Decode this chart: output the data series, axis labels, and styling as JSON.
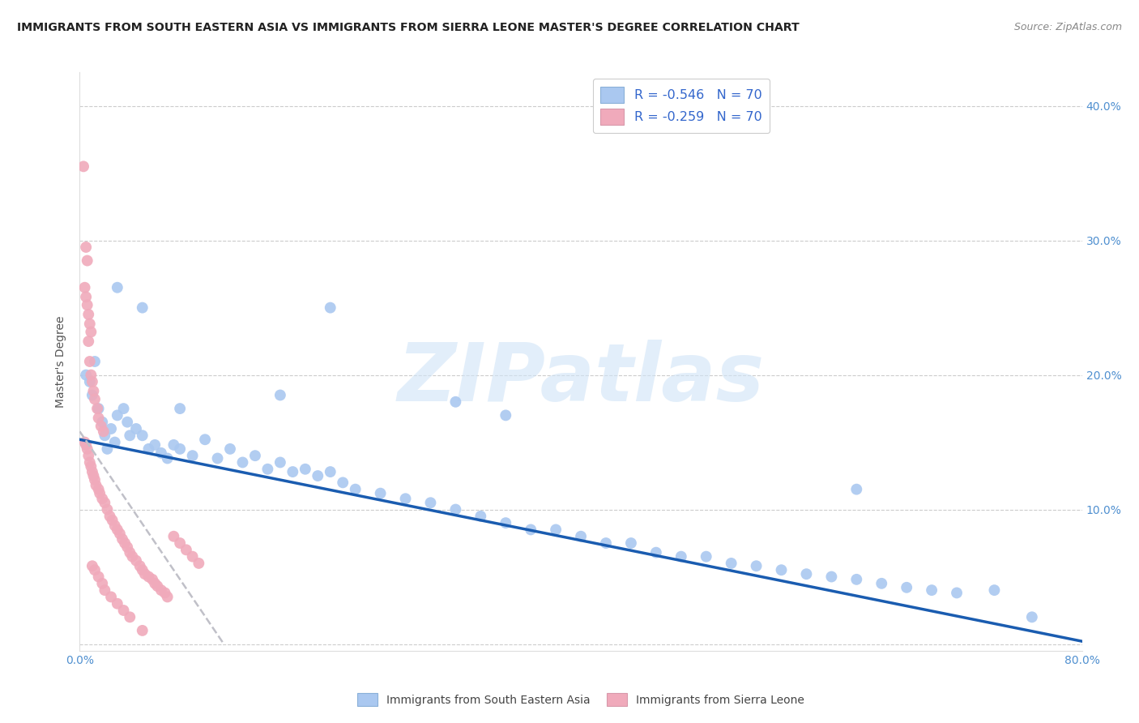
{
  "title": "IMMIGRANTS FROM SOUTH EASTERN ASIA VS IMMIGRANTS FROM SIERRA LEONE MASTER'S DEGREE CORRELATION CHART",
  "source": "Source: ZipAtlas.com",
  "ylabel": "Master's Degree",
  "xlim": [
    0.0,
    0.8
  ],
  "ylim": [
    -0.005,
    0.425
  ],
  "yticks": [
    0.0,
    0.1,
    0.2,
    0.3,
    0.4
  ],
  "ytick_labels_right": [
    "",
    "10.0%",
    "20.0%",
    "30.0%",
    "40.0%"
  ],
  "xticks": [
    0.0,
    0.8
  ],
  "xtick_labels": [
    "0.0%",
    "80.0%"
  ],
  "legend_r1": "-0.546",
  "legend_n1": "70",
  "legend_r2": "-0.259",
  "legend_n2": "70",
  "legend_label1": "Immigrants from South Eastern Asia",
  "legend_label2": "Immigrants from Sierra Leone",
  "color_blue": "#aac8f0",
  "color_pink": "#f0aabb",
  "color_blue_line": "#1a5cb0",
  "watermark_text": "ZIPatlas",
  "blue_line_x": [
    0.0,
    0.8
  ],
  "blue_line_y": [
    0.152,
    0.002
  ],
  "pink_line_x": [
    0.0,
    0.115
  ],
  "pink_line_y": [
    0.158,
    0.0
  ],
  "blue_scatter_x": [
    0.005,
    0.008,
    0.01,
    0.012,
    0.015,
    0.018,
    0.02,
    0.022,
    0.025,
    0.028,
    0.03,
    0.035,
    0.038,
    0.04,
    0.045,
    0.05,
    0.055,
    0.06,
    0.065,
    0.07,
    0.075,
    0.08,
    0.09,
    0.1,
    0.11,
    0.12,
    0.13,
    0.14,
    0.15,
    0.16,
    0.17,
    0.18,
    0.19,
    0.2,
    0.21,
    0.22,
    0.24,
    0.26,
    0.28,
    0.3,
    0.32,
    0.34,
    0.36,
    0.38,
    0.4,
    0.42,
    0.44,
    0.46,
    0.48,
    0.5,
    0.52,
    0.54,
    0.56,
    0.58,
    0.6,
    0.62,
    0.64,
    0.66,
    0.68,
    0.7,
    0.03,
    0.05,
    0.2,
    0.3,
    0.08,
    0.16,
    0.73,
    0.76,
    0.62,
    0.34
  ],
  "blue_scatter_y": [
    0.2,
    0.195,
    0.185,
    0.21,
    0.175,
    0.165,
    0.155,
    0.145,
    0.16,
    0.15,
    0.17,
    0.175,
    0.165,
    0.155,
    0.16,
    0.155,
    0.145,
    0.148,
    0.142,
    0.138,
    0.148,
    0.145,
    0.14,
    0.152,
    0.138,
    0.145,
    0.135,
    0.14,
    0.13,
    0.135,
    0.128,
    0.13,
    0.125,
    0.128,
    0.12,
    0.115,
    0.112,
    0.108,
    0.105,
    0.1,
    0.095,
    0.09,
    0.085,
    0.085,
    0.08,
    0.075,
    0.075,
    0.068,
    0.065,
    0.065,
    0.06,
    0.058,
    0.055,
    0.052,
    0.05,
    0.048,
    0.045,
    0.042,
    0.04,
    0.038,
    0.265,
    0.25,
    0.25,
    0.18,
    0.175,
    0.185,
    0.04,
    0.02,
    0.115,
    0.17
  ],
  "pink_scatter_x": [
    0.003,
    0.004,
    0.005,
    0.005,
    0.006,
    0.006,
    0.007,
    0.007,
    0.008,
    0.008,
    0.009,
    0.009,
    0.01,
    0.01,
    0.011,
    0.011,
    0.012,
    0.012,
    0.013,
    0.014,
    0.015,
    0.015,
    0.016,
    0.017,
    0.018,
    0.019,
    0.02,
    0.022,
    0.024,
    0.026,
    0.028,
    0.03,
    0.032,
    0.034,
    0.036,
    0.038,
    0.04,
    0.042,
    0.045,
    0.048,
    0.05,
    0.052,
    0.055,
    0.058,
    0.06,
    0.062,
    0.065,
    0.068,
    0.07,
    0.075,
    0.08,
    0.085,
    0.09,
    0.095,
    0.004,
    0.005,
    0.006,
    0.007,
    0.008,
    0.009,
    0.01,
    0.012,
    0.015,
    0.018,
    0.02,
    0.025,
    0.03,
    0.035,
    0.04,
    0.05
  ],
  "pink_scatter_y": [
    0.355,
    0.15,
    0.148,
    0.295,
    0.145,
    0.285,
    0.14,
    0.225,
    0.135,
    0.21,
    0.132,
    0.2,
    0.128,
    0.195,
    0.125,
    0.188,
    0.122,
    0.182,
    0.118,
    0.175,
    0.115,
    0.168,
    0.112,
    0.162,
    0.108,
    0.158,
    0.105,
    0.1,
    0.095,
    0.092,
    0.088,
    0.085,
    0.082,
    0.078,
    0.075,
    0.072,
    0.068,
    0.065,
    0.062,
    0.058,
    0.055,
    0.052,
    0.05,
    0.048,
    0.045,
    0.043,
    0.04,
    0.038,
    0.035,
    0.08,
    0.075,
    0.07,
    0.065,
    0.06,
    0.265,
    0.258,
    0.252,
    0.245,
    0.238,
    0.232,
    0.058,
    0.055,
    0.05,
    0.045,
    0.04,
    0.035,
    0.03,
    0.025,
    0.02,
    0.01
  ]
}
